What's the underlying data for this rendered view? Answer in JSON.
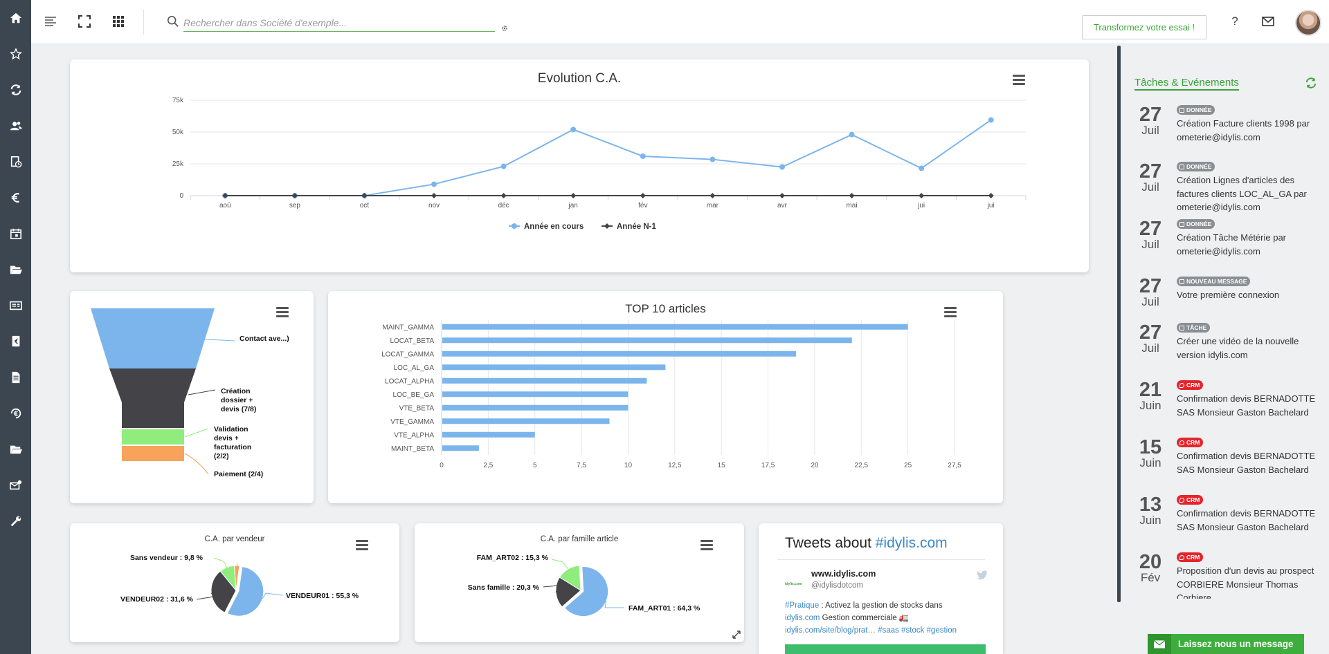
{
  "sidebar": {
    "icons": [
      "home-icon",
      "star-icon",
      "sync-icon",
      "users-icon",
      "calendar-doc-icon",
      "euro-icon",
      "calendar-icon",
      "folder-open-icon",
      "id-card-icon",
      "invoice-icon",
      "document-icon",
      "euro-cycle-icon",
      "folder-icon",
      "mail-settings-icon",
      "wrench-icon"
    ]
  },
  "topbar": {
    "search_placeholder": "Rechercher dans Société d'exemple...",
    "cta_label": "Transformez votre essai !",
    "help_label": "?"
  },
  "chart_data": [
    {
      "type": "line",
      "title": "Evolution C.A.",
      "categories": [
        "aoû",
        "sep",
        "oct",
        "nov",
        "déc",
        "jan",
        "fév",
        "mar",
        "avr",
        "mai",
        "jui",
        "jui"
      ],
      "series": [
        {
          "name": "Année en cours",
          "color": "#7cb5ec",
          "values": [
            0,
            0,
            0,
            9000,
            23000,
            52000,
            31000,
            28500,
            22500,
            48000,
            21500,
            59500
          ]
        },
        {
          "name": "Année N-1",
          "color": "#434348",
          "values": [
            0,
            0,
            0,
            0,
            0,
            0,
            0,
            0,
            0,
            0,
            0,
            0
          ]
        }
      ],
      "yticks": [
        "0",
        "25k",
        "50k",
        "75k"
      ],
      "ylim": [
        0,
        75000
      ],
      "grid": true,
      "legend": "bottom-center"
    },
    {
      "type": "funnel",
      "stages": [
        {
          "label": "Contact ave...)",
          "color": "#7cb5ec"
        },
        {
          "label": "Création dossier + devis (7/8)",
          "color": "#434348"
        },
        {
          "label": "Validation devis + facturation (2/2)",
          "color": "#90ed7d"
        },
        {
          "label": "Paiement (2/4)",
          "color": "#f7a35c"
        }
      ]
    },
    {
      "type": "bar",
      "orientation": "horizontal",
      "title": "TOP 10 articles",
      "categories": [
        "MAINT_GAMMA",
        "LOCAT_BETA",
        "LOCAT_GAMMA",
        "LOC_AL_GA",
        "LOCAT_ALPHA",
        "LOC_BE_GA",
        "VTE_BETA",
        "VTE_GAMMA",
        "VTE_ALPHA",
        "MAINT_BETA"
      ],
      "values": [
        25,
        22,
        19,
        12,
        11,
        10,
        10,
        9,
        5,
        2
      ],
      "xticks": [
        "0",
        "2,5",
        "5",
        "7,5",
        "10",
        "12,5",
        "15",
        "17,5",
        "20",
        "22,5",
        "25",
        "27,5"
      ],
      "xlim": [
        0,
        27.5
      ],
      "color": "#7cb5ec"
    },
    {
      "type": "pie",
      "title": "C.A. par vendeur",
      "slices": [
        {
          "label": "VENDEUR01 : 55,3 %",
          "value": 55.3,
          "color": "#7cb5ec"
        },
        {
          "label": "VENDEUR02 : 31,6 %",
          "value": 31.6,
          "color": "#434348"
        },
        {
          "label": "Sans vendeur : 9,8 %",
          "value": 9.8,
          "color": "#90ed7d"
        },
        {
          "label": "",
          "value": 3.3,
          "color": "#f7a35c"
        }
      ]
    },
    {
      "type": "pie",
      "title": "C.A. par famille article",
      "slices": [
        {
          "label": "FAM_ART01 : 64,3 %",
          "value": 64.3,
          "color": "#7cb5ec"
        },
        {
          "label": "Sans famille : 20,3 %",
          "value": 20.3,
          "color": "#434348"
        },
        {
          "label": "FAM_ART02 : 15,3 %",
          "value": 15.3,
          "color": "#90ed7d"
        }
      ]
    }
  ],
  "tweets": {
    "title_prefix": "Tweets about ",
    "title_tag": "#idylis.com",
    "logo_text": "idylis.com",
    "account_name": "www.idylis.com",
    "account_handle": "@idylisdotcom",
    "text_tag1": "#Pratique",
    "text_line1": " : Activez la gestion de stocks dans",
    "text_link1": "idylis.com",
    "text_line2": " Gestion commerciale 🚛",
    "text_link2": "idylis.com/site/blog/prat…",
    "text_tags": " #saas #stock #gestion"
  },
  "tasks": {
    "title": "Tâches & Evénements",
    "events": [
      {
        "day": "27",
        "month": "Juil",
        "badge": "DONNÉE",
        "badge_type": "grey",
        "badge_icon": "db-icon",
        "text": "Création Facture clients 1998 par ometerie@idylis.com"
      },
      {
        "day": "27",
        "month": "Juil",
        "badge": "DONNÉE",
        "badge_type": "grey",
        "badge_icon": "db-icon",
        "text": "Création Lignes d'articles des factures clients LOC_AL_GA par ometerie@idylis.com"
      },
      {
        "day": "27",
        "month": "Juil",
        "badge": "DONNÉE",
        "badge_type": "grey",
        "badge_icon": "db-icon",
        "text": "Création Tâche Métérie par ometerie@idylis.com"
      },
      {
        "day": "27",
        "month": "Juil",
        "badge": "NOUVEAU MESSAGE",
        "badge_type": "grey",
        "badge_icon": "envelope-icon",
        "text": "Votre première connexion"
      },
      {
        "day": "27",
        "month": "Juil",
        "badge": "TÂCHE",
        "badge_type": "grey",
        "badge_icon": "list-icon",
        "text": "Créer une vidéo de la nouvelle version idylis.com"
      },
      {
        "day": "21",
        "month": "Juin",
        "badge": "CRM",
        "badge_type": "red",
        "badge_icon": "pin-icon",
        "text": "Confirmation devis BERNADOTTE SAS Monsieur Gaston Bachelard"
      },
      {
        "day": "15",
        "month": "Juin",
        "badge": "CRM",
        "badge_type": "red",
        "badge_icon": "pin-icon",
        "text": "Confirmation devis BERNADOTTE SAS Monsieur Gaston Bachelard"
      },
      {
        "day": "13",
        "month": "Juin",
        "badge": "CRM",
        "badge_type": "red",
        "badge_icon": "pin-icon",
        "text": "Confirmation devis BERNADOTTE SAS Monsieur Gaston Bachelard"
      },
      {
        "day": "20",
        "month": "Fév",
        "badge": "CRM",
        "badge_type": "red",
        "badge_icon": "pin-icon",
        "text": "Proposition d'un devis au prospect CORBIERE Monsieur Thomas Corbiere"
      }
    ]
  },
  "chat": {
    "label": "Laissez nous un message"
  }
}
